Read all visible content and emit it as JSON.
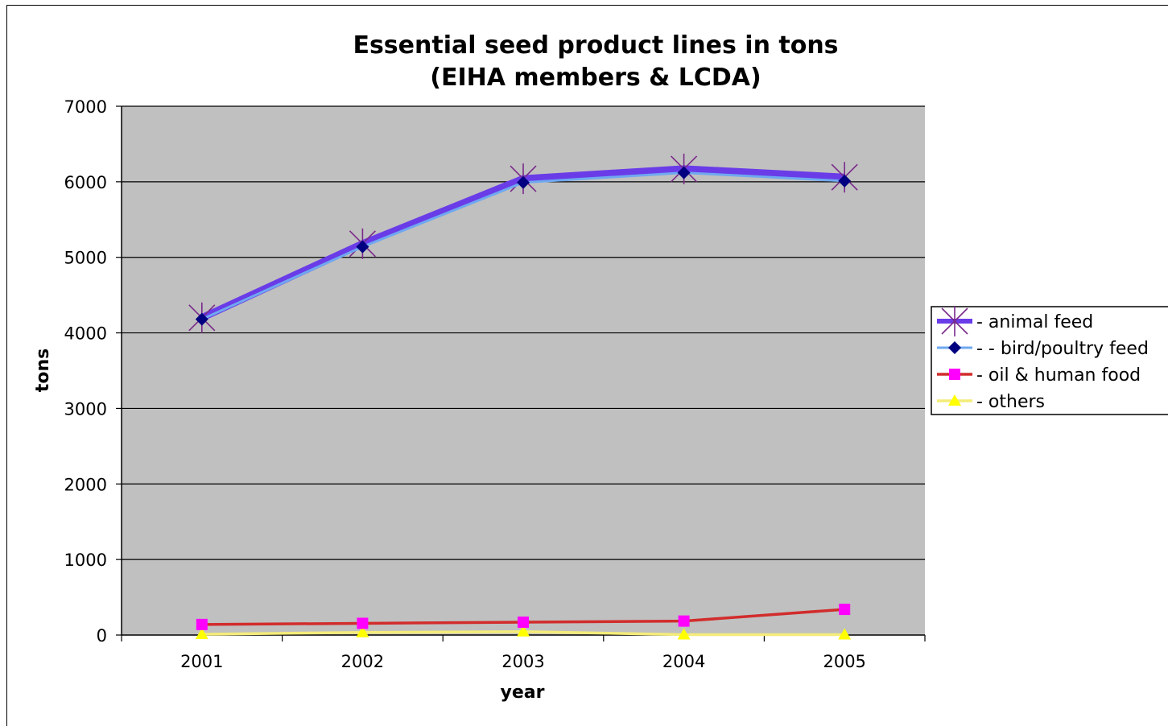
{
  "chart_data": {
    "type": "line",
    "title": "Essential seed product lines in tons",
    "subtitle": "(EIHA members & LCDA)",
    "xlabel": "year",
    "ylabel": "tons",
    "x": [
      "2001",
      "2002",
      "2003",
      "2004",
      "2005"
    ],
    "ylim": [
      0,
      7000
    ],
    "yticks": [
      0,
      1000,
      2000,
      3000,
      4000,
      5000,
      6000,
      7000
    ],
    "grid": true,
    "legend_position": "right",
    "plot_background": "#c0c0c0",
    "series": [
      {
        "name": "- animal feed",
        "values": [
          4200,
          5180,
          6040,
          6170,
          6060
        ],
        "color": "#6a3ce8",
        "marker": "star",
        "marker_color": "#7a2a8a"
      },
      {
        "name": "- -  bird/poultry feed",
        "values": [
          4180,
          5140,
          5990,
          6120,
          6010
        ],
        "color": "#6fa8f0",
        "marker": "diamond",
        "marker_color": "#000080"
      },
      {
        "name": "- oil & human food",
        "values": [
          140,
          155,
          170,
          185,
          340
        ],
        "color": "#d22c2c",
        "marker": "square",
        "marker_color": "#ff00ff"
      },
      {
        "name": "- others",
        "values": [
          10,
          35,
          45,
          5,
          5
        ],
        "color": "#f4ec7a",
        "marker": "triangle",
        "marker_color": "#ffff00"
      }
    ]
  }
}
